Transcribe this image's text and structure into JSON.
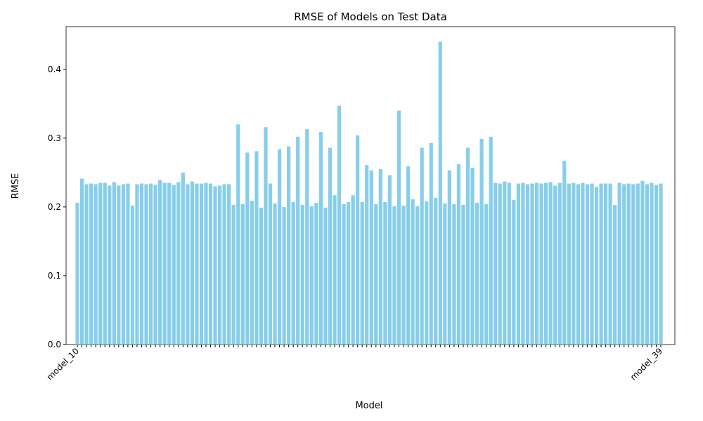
{
  "chart_data": {
    "type": "bar",
    "title": "RMSE of Models on Test Data",
    "xlabel": "Model",
    "ylabel": "RMSE",
    "color": "#87ceeb",
    "categories": [
      "model_10",
      null,
      null,
      null,
      null,
      null,
      null,
      null,
      null,
      null,
      null,
      null,
      null,
      null,
      null,
      null,
      null,
      null,
      null,
      null,
      null,
      null,
      null,
      null,
      null,
      null,
      null,
      null,
      null,
      null,
      null,
      null,
      null,
      null,
      null,
      null,
      null,
      null,
      null,
      null,
      null,
      null,
      null,
      null,
      null,
      null,
      null,
      null,
      null,
      null,
      null,
      null,
      null,
      null,
      null,
      null,
      null,
      null,
      null,
      null,
      null,
      null,
      null,
      null,
      null,
      null,
      null,
      null,
      null,
      null,
      null,
      null,
      null,
      null,
      null,
      null,
      null,
      null,
      null,
      null,
      null,
      null,
      null,
      null,
      null,
      null,
      null,
      null,
      null,
      null,
      null,
      null,
      null,
      null,
      null,
      null,
      null,
      null,
      null,
      null,
      null,
      null,
      null,
      null,
      null,
      null,
      null,
      null,
      null,
      null,
      null,
      null,
      null,
      null,
      null,
      null,
      null,
      null,
      null,
      null,
      null,
      null,
      null,
      null,
      null,
      null,
      null,
      "model_39"
    ],
    "values": [
      0.206,
      0.241,
      0.233,
      0.234,
      0.233,
      0.235,
      0.235,
      0.231,
      0.236,
      0.231,
      0.233,
      0.234,
      0.202,
      0.233,
      0.234,
      0.233,
      0.234,
      0.232,
      0.239,
      0.235,
      0.235,
      0.232,
      0.236,
      0.25,
      0.233,
      0.237,
      0.234,
      0.234,
      0.235,
      0.234,
      0.23,
      0.231,
      0.233,
      0.233,
      0.203,
      0.32,
      0.204,
      0.279,
      0.209,
      0.281,
      0.199,
      0.316,
      0.234,
      0.205,
      0.284,
      0.2,
      0.288,
      0.207,
      0.302,
      0.203,
      0.313,
      0.201,
      0.206,
      0.309,
      0.199,
      0.286,
      0.217,
      0.347,
      0.204,
      0.207,
      0.217,
      0.304,
      0.207,
      0.261,
      0.253,
      0.204,
      0.255,
      0.207,
      0.246,
      0.201,
      0.34,
      0.202,
      0.259,
      0.211,
      0.201,
      0.286,
      0.208,
      0.293,
      0.213,
      0.44,
      0.205,
      0.253,
      0.204,
      0.262,
      0.203,
      0.286,
      0.257,
      0.206,
      0.299,
      0.204,
      0.302,
      0.235,
      0.234,
      0.237,
      0.235,
      0.21,
      0.234,
      0.235,
      0.233,
      0.234,
      0.235,
      0.234,
      0.235,
      0.236,
      0.231,
      0.235,
      0.267,
      0.234,
      0.235,
      0.233,
      0.235,
      0.233,
      0.234,
      0.229,
      0.234,
      0.234,
      0.234,
      0.203,
      0.235,
      0.233,
      0.234,
      0.233,
      0.234,
      0.238,
      0.233,
      0.235,
      0.232,
      0.234
    ],
    "ylim": [
      0,
      0.462
    ],
    "yticks": [
      {
        "value": 0,
        "label": "0.0"
      },
      0.1,
      0.2,
      0.3,
      0.4
    ]
  }
}
